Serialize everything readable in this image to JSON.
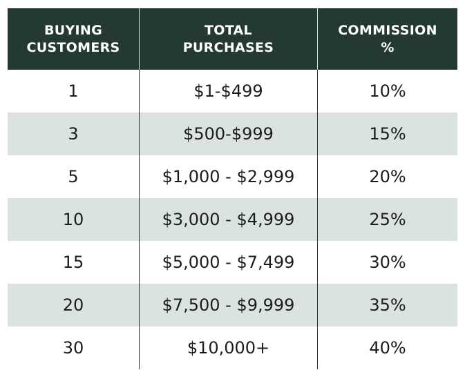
{
  "table": {
    "headers": [
      "BUYING\nCUSTOMERS",
      "TOTAL\nPURCHASES",
      "COMMISSION\n%"
    ],
    "rows": [
      [
        "1",
        "$1-$499",
        "10%"
      ],
      [
        "3",
        "$500-$999",
        "15%"
      ],
      [
        "5",
        "$1,000 - $2,999",
        "20%"
      ],
      [
        "10",
        "$3,000 - $4,999",
        "25%"
      ],
      [
        "15",
        "$5,000 - $7,499",
        "30%"
      ],
      [
        "20",
        "$7,500 - $9,999",
        "35%"
      ],
      [
        "30",
        "$10,000+",
        "40%"
      ]
    ]
  },
  "colors": {
    "header_bg": "#243a31",
    "header_text": "#ffffff",
    "stripe_bg": "#dbe3df",
    "body_text": "#1c1c1c"
  }
}
